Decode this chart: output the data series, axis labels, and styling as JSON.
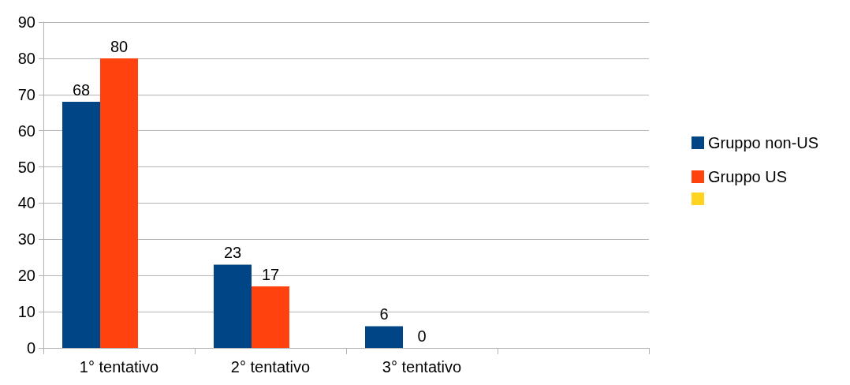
{
  "chart_data": {
    "type": "bar",
    "categories": [
      "1° tentativo",
      "2° tentativo",
      "3° tentativo",
      null
    ],
    "series": [
      {
        "name": "Gruppo non-US",
        "color": "#004586",
        "values": [
          68,
          23,
          6,
          null
        ]
      },
      {
        "name": "Gruppo US",
        "color": "#ff420e",
        "values": [
          80,
          17,
          0,
          null
        ]
      },
      {
        "color": "#ffd320",
        "values": [
          null,
          null,
          null,
          null
        ]
      }
    ],
    "ylim": [
      0,
      90
    ],
    "yticks": [
      0,
      10,
      20,
      30,
      40,
      50,
      60,
      70,
      80,
      90
    ],
    "grid": "y",
    "legend": "right",
    "data_labels": true
  }
}
